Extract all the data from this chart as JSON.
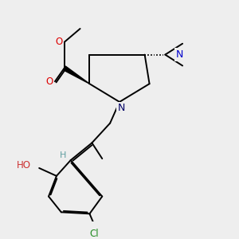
{
  "bg_color": "#eeeeee",
  "figsize": [
    3.0,
    3.0
  ],
  "dpi": 100,
  "xlim": [
    0.2,
    2.8
  ],
  "ylim": [
    0.1,
    2.9
  ]
}
